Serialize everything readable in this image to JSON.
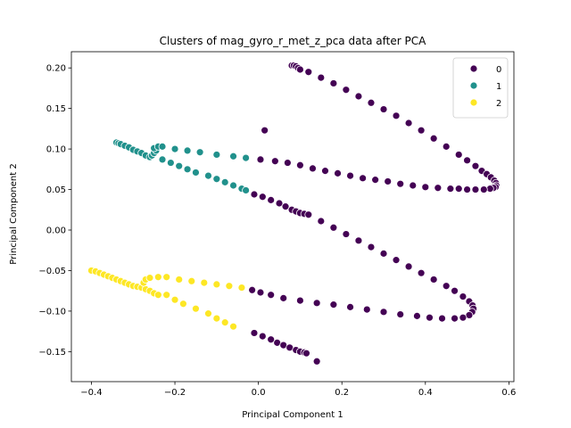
{
  "chart_data": {
    "type": "scatter",
    "title": "Clusters of mag_gyro_r_met_z_pca data after PCA",
    "xlabel": "Principal Component 1",
    "ylabel": "Principal Component 2",
    "xlim": [
      -0.448,
      0.612
    ],
    "ylim": [
      -0.187,
      0.22
    ],
    "xticks": [
      -0.4,
      -0.2,
      0.0,
      0.2,
      0.4,
      0.6
    ],
    "xtick_labels": [
      "−0.4",
      "−0.2",
      "0.0",
      "0.2",
      "0.4",
      "0.6"
    ],
    "yticks": [
      -0.15,
      -0.1,
      -0.05,
      0.0,
      0.05,
      0.1,
      0.15,
      0.2
    ],
    "ytick_labels": [
      "−0.15",
      "−0.10",
      "−0.05",
      "0.00",
      "0.05",
      "0.10",
      "0.15",
      "0.20"
    ],
    "grid": false,
    "legend_position": "upper right",
    "series": [
      {
        "name": "0",
        "color": "#440154",
        "points": [
          [
            0.015,
            0.123
          ],
          [
            0.08,
            0.203
          ],
          [
            0.085,
            0.203
          ],
          [
            0.09,
            0.202
          ],
          [
            0.095,
            0.2
          ],
          [
            0.1,
            0.198
          ],
          [
            0.12,
            0.195
          ],
          [
            0.15,
            0.188
          ],
          [
            0.18,
            0.181
          ],
          [
            0.21,
            0.173
          ],
          [
            0.24,
            0.165
          ],
          [
            0.27,
            0.157
          ],
          [
            0.3,
            0.149
          ],
          [
            0.33,
            0.141
          ],
          [
            0.36,
            0.132
          ],
          [
            0.39,
            0.123
          ],
          [
            0.42,
            0.113
          ],
          [
            0.45,
            0.103
          ],
          [
            0.48,
            0.093
          ],
          [
            0.5,
            0.086
          ],
          [
            0.52,
            0.079
          ],
          [
            0.535,
            0.073
          ],
          [
            0.547,
            0.069
          ],
          [
            0.557,
            0.065
          ],
          [
            0.565,
            0.061
          ],
          [
            0.569,
            0.058
          ],
          [
            0.57,
            0.055
          ],
          [
            0.568,
            0.053
          ],
          [
            0.563,
            0.052
          ],
          [
            0.555,
            0.051
          ],
          [
            0.54,
            0.05
          ],
          [
            0.52,
            0.05
          ],
          [
            0.5,
            0.05
          ],
          [
            0.48,
            0.051
          ],
          [
            0.46,
            0.051
          ],
          [
            0.43,
            0.052
          ],
          [
            0.4,
            0.053
          ],
          [
            0.37,
            0.055
          ],
          [
            0.34,
            0.057
          ],
          [
            0.31,
            0.06
          ],
          [
            0.28,
            0.062
          ],
          [
            0.25,
            0.064
          ],
          [
            0.22,
            0.067
          ],
          [
            0.19,
            0.07
          ],
          [
            0.16,
            0.073
          ],
          [
            0.13,
            0.076
          ],
          [
            0.1,
            0.08
          ],
          [
            0.07,
            0.083
          ],
          [
            0.04,
            0.085
          ],
          [
            0.005,
            0.087
          ],
          [
            -0.01,
            0.044
          ],
          [
            0.01,
            0.041
          ],
          [
            0.03,
            0.037
          ],
          [
            0.05,
            0.033
          ],
          [
            0.065,
            0.029
          ],
          [
            0.08,
            0.025
          ],
          [
            0.09,
            0.023
          ],
          [
            0.1,
            0.021
          ],
          [
            0.11,
            0.02
          ],
          [
            0.12,
            0.019
          ],
          [
            0.15,
            0.011
          ],
          [
            0.18,
            0.003
          ],
          [
            0.21,
            -0.005
          ],
          [
            0.24,
            -0.013
          ],
          [
            0.27,
            -0.021
          ],
          [
            0.3,
            -0.029
          ],
          [
            0.33,
            -0.037
          ],
          [
            0.36,
            -0.045
          ],
          [
            0.39,
            -0.053
          ],
          [
            0.42,
            -0.061
          ],
          [
            0.45,
            -0.069
          ],
          [
            0.47,
            -0.075
          ],
          [
            0.49,
            -0.082
          ],
          [
            0.505,
            -0.088
          ],
          [
            0.513,
            -0.093
          ],
          [
            0.515,
            -0.097
          ],
          [
            0.512,
            -0.101
          ],
          [
            0.505,
            -0.105
          ],
          [
            0.49,
            -0.108
          ],
          [
            0.47,
            -0.109
          ],
          [
            0.44,
            -0.109
          ],
          [
            0.41,
            -0.108
          ],
          [
            0.38,
            -0.106
          ],
          [
            0.34,
            -0.104
          ],
          [
            0.3,
            -0.101
          ],
          [
            0.26,
            -0.098
          ],
          [
            0.22,
            -0.095
          ],
          [
            0.18,
            -0.092
          ],
          [
            0.14,
            -0.09
          ],
          [
            0.1,
            -0.087
          ],
          [
            0.06,
            -0.084
          ],
          [
            0.03,
            -0.08
          ],
          [
            0.005,
            -0.077
          ],
          [
            -0.015,
            -0.074
          ],
          [
            -0.01,
            -0.127
          ],
          [
            0.01,
            -0.131
          ],
          [
            0.03,
            -0.135
          ],
          [
            0.045,
            -0.139
          ],
          [
            0.06,
            -0.142
          ],
          [
            0.075,
            -0.145
          ],
          [
            0.09,
            -0.148
          ],
          [
            0.1,
            -0.15
          ],
          [
            0.11,
            -0.151
          ],
          [
            0.115,
            -0.152
          ],
          [
            0.14,
            -0.162
          ]
        ]
      },
      {
        "name": "1",
        "color": "#21918c",
        "points": [
          [
            -0.34,
            0.108
          ],
          [
            -0.335,
            0.107
          ],
          [
            -0.33,
            0.106
          ],
          [
            -0.32,
            0.104
          ],
          [
            -0.31,
            0.102
          ],
          [
            -0.3,
            0.099
          ],
          [
            -0.29,
            0.097
          ],
          [
            -0.28,
            0.095
          ],
          [
            -0.27,
            0.092
          ],
          [
            -0.26,
            0.09
          ],
          [
            -0.255,
            0.092
          ],
          [
            -0.25,
            0.095
          ],
          [
            -0.245,
            0.098
          ],
          [
            -0.25,
            0.101
          ],
          [
            -0.24,
            0.103
          ],
          [
            -0.23,
            0.103
          ],
          [
            -0.2,
            0.1
          ],
          [
            -0.17,
            0.098
          ],
          [
            -0.14,
            0.096
          ],
          [
            -0.1,
            0.093
          ],
          [
            -0.06,
            0.091
          ],
          [
            -0.03,
            0.089
          ],
          [
            -0.23,
            0.087
          ],
          [
            -0.21,
            0.083
          ],
          [
            -0.19,
            0.079
          ],
          [
            -0.17,
            0.075
          ],
          [
            -0.15,
            0.071
          ],
          [
            -0.12,
            0.067
          ],
          [
            -0.1,
            0.063
          ],
          [
            -0.08,
            0.059
          ],
          [
            -0.06,
            0.055
          ],
          [
            -0.04,
            0.051
          ],
          [
            -0.03,
            0.049
          ]
        ]
      },
      {
        "name": "2",
        "color": "#fde725",
        "points": [
          [
            -0.4,
            -0.05
          ],
          [
            -0.39,
            -0.051
          ],
          [
            -0.38,
            -0.053
          ],
          [
            -0.37,
            -0.055
          ],
          [
            -0.36,
            -0.057
          ],
          [
            -0.35,
            -0.059
          ],
          [
            -0.34,
            -0.061
          ],
          [
            -0.33,
            -0.063
          ],
          [
            -0.32,
            -0.065
          ],
          [
            -0.31,
            -0.067
          ],
          [
            -0.3,
            -0.069
          ],
          [
            -0.29,
            -0.07
          ],
          [
            -0.28,
            -0.071
          ],
          [
            -0.27,
            -0.073
          ],
          [
            -0.26,
            -0.075
          ],
          [
            -0.25,
            -0.078
          ],
          [
            -0.24,
            -0.08
          ],
          [
            -0.275,
            -0.065
          ],
          [
            -0.27,
            -0.061
          ],
          [
            -0.26,
            -0.059
          ],
          [
            -0.24,
            -0.058
          ],
          [
            -0.22,
            -0.058
          ],
          [
            -0.19,
            -0.061
          ],
          [
            -0.16,
            -0.063
          ],
          [
            -0.13,
            -0.065
          ],
          [
            -0.1,
            -0.067
          ],
          [
            -0.07,
            -0.069
          ],
          [
            -0.04,
            -0.071
          ],
          [
            -0.22,
            -0.08
          ],
          [
            -0.2,
            -0.086
          ],
          [
            -0.18,
            -0.091
          ],
          [
            -0.15,
            -0.097
          ],
          [
            -0.12,
            -0.103
          ],
          [
            -0.1,
            -0.109
          ],
          [
            -0.08,
            -0.114
          ],
          [
            -0.06,
            -0.119
          ]
        ]
      }
    ]
  }
}
